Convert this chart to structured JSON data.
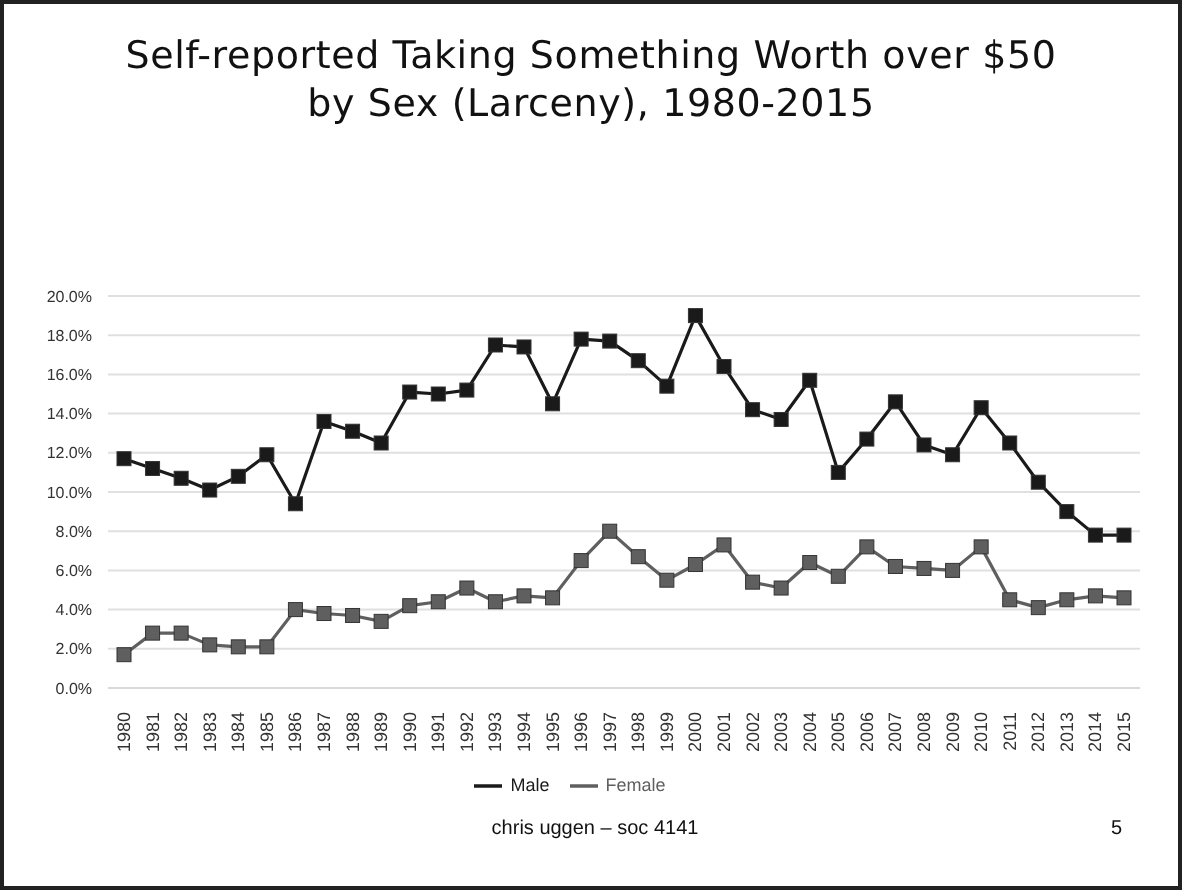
{
  "chart_data": {
    "type": "line",
    "title": "Self-reported Taking Something Worth over $50 by Sex (Larceny), 1980-2015",
    "categories": [
      "1980",
      "1981",
      "1982",
      "1983",
      "1984",
      "1985",
      "1986",
      "1987",
      "1988",
      "1989",
      "1990",
      "1991",
      "1992",
      "1993",
      "1994",
      "1995",
      "1996",
      "1997",
      "1998",
      "1999",
      "2000",
      "2001",
      "2002",
      "2003",
      "2004",
      "2005",
      "2006",
      "2007",
      "2008",
      "2009",
      "2010",
      "2011",
      "2012",
      "2013",
      "2014",
      "2015"
    ],
    "series": [
      {
        "name": "Male",
        "color": "#1a1a1a",
        "values": [
          11.7,
          11.2,
          10.7,
          10.1,
          10.8,
          11.9,
          9.4,
          13.6,
          13.1,
          12.5,
          15.1,
          15.0,
          15.2,
          17.5,
          17.4,
          14.5,
          17.8,
          17.7,
          16.7,
          15.4,
          19.0,
          16.4,
          14.2,
          13.7,
          15.7,
          11.0,
          12.7,
          14.6,
          12.4,
          11.9,
          14.3,
          12.5,
          10.5,
          9.0,
          7.8,
          7.8
        ]
      },
      {
        "name": "Female",
        "color": "#5f5f5f",
        "values": [
          1.7,
          2.8,
          2.8,
          2.2,
          2.1,
          2.1,
          4.0,
          3.8,
          3.7,
          3.4,
          4.2,
          4.4,
          5.1,
          4.4,
          4.7,
          4.6,
          6.5,
          8.0,
          6.7,
          5.5,
          6.3,
          7.3,
          5.4,
          5.1,
          6.4,
          5.7,
          7.2,
          6.2,
          6.1,
          6.0,
          7.2,
          4.5,
          4.1,
          4.5,
          4.7,
          4.6
        ]
      }
    ],
    "ylim": [
      0,
      20
    ],
    "yticks": [
      {
        "value": 0,
        "label": "0.0%"
      },
      {
        "value": 2,
        "label": "2.0%"
      },
      {
        "value": 4,
        "label": "4.0%"
      },
      {
        "value": 6,
        "label": "6.0%"
      },
      {
        "value": 8,
        "label": "8.0%"
      },
      {
        "value": 10,
        "label": "10.0%"
      },
      {
        "value": 12,
        "label": "12.0%"
      },
      {
        "value": 14,
        "label": "14.0%"
      },
      {
        "value": 16,
        "label": "16.0%"
      },
      {
        "value": 18,
        "label": "18.0%"
      },
      {
        "value": 20,
        "label": "20.0%"
      }
    ],
    "grid": "y",
    "legend": "bottom",
    "marker": "square",
    "line_style": "solid",
    "annotations": [
      "chris uggen – soc 4141",
      "5"
    ]
  }
}
